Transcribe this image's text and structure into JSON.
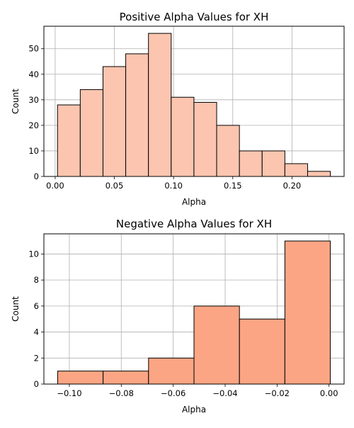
{
  "chart_data": [
    {
      "type": "bar",
      "subtype": "histogram",
      "title": "Positive Alpha Values for XH",
      "xlabel": "Alpha",
      "ylabel": "Count",
      "bin_edges": [
        0.002,
        0.0212,
        0.0404,
        0.0596,
        0.0788,
        0.098,
        0.1172,
        0.1364,
        0.1556,
        0.1748,
        0.194,
        0.2132,
        0.2324
      ],
      "values": [
        28,
        34,
        43,
        48,
        56,
        31,
        29,
        20,
        10,
        10,
        5,
        2
      ],
      "xlim": [
        -0.0095,
        0.244
      ],
      "ylim": [
        0,
        58.8
      ],
      "xticks": [
        0.0,
        0.05,
        0.1,
        0.15,
        0.2
      ],
      "xtick_labels": [
        "0.00",
        "0.05",
        "0.10",
        "0.15",
        "0.20"
      ],
      "yticks": [
        0,
        10,
        20,
        30,
        40,
        50
      ],
      "ytick_labels": [
        "0",
        "10",
        "20",
        "30",
        "40",
        "50"
      ],
      "grid": true,
      "bar_color": "#fcc5b0",
      "edge_color": "#000000"
    },
    {
      "type": "bar",
      "subtype": "histogram",
      "title": "Negative Alpha Values for XH",
      "xlabel": "Alpha",
      "ylabel": "Count",
      "bin_edges": [
        -0.1045,
        -0.087,
        -0.0695,
        -0.052,
        -0.0345,
        -0.017,
        0.0005
      ],
      "values": [
        1,
        1,
        2,
        6,
        5,
        11
      ],
      "xlim": [
        -0.1098,
        0.0058
      ],
      "ylim": [
        0,
        11.55
      ],
      "xticks": [
        -0.1,
        -0.08,
        -0.06,
        -0.04,
        -0.02,
        0.0
      ],
      "xtick_labels": [
        "−0.10",
        "−0.08",
        "−0.06",
        "−0.04",
        "−0.02",
        "0.00"
      ],
      "yticks": [
        0,
        2,
        4,
        6,
        8,
        10
      ],
      "ytick_labels": [
        "0",
        "2",
        "4",
        "6",
        "8",
        "10"
      ],
      "grid": true,
      "bar_color": "#fca584",
      "edge_color": "#000000"
    }
  ]
}
